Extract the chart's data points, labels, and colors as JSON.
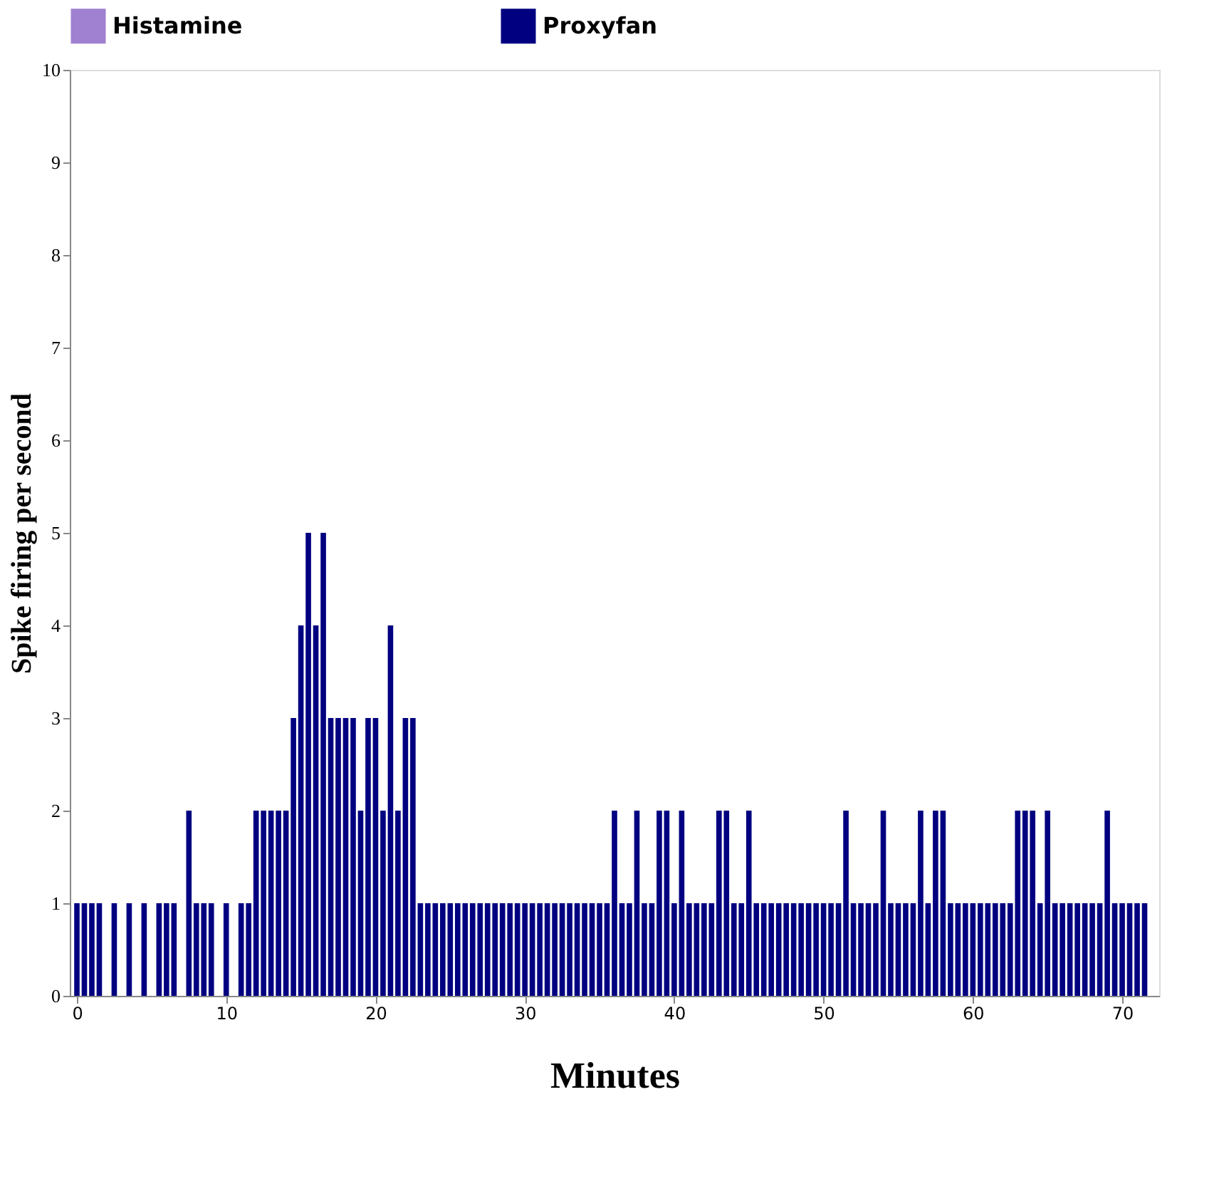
{
  "chart_data": {
    "type": "bar",
    "xlabel": "Minutes",
    "ylabel": "Spike firing per second",
    "legend": "top",
    "xlim": [
      0,
      72
    ],
    "xticks": [
      0,
      10,
      20,
      30,
      40,
      50,
      60,
      70
    ],
    "ylim": [
      0,
      10
    ],
    "yticks": [
      0,
      1,
      2,
      3,
      4,
      5,
      6,
      7,
      8,
      9,
      10
    ],
    "grid": false,
    "x": [
      0,
      0.5,
      1,
      1.5,
      2,
      2.5,
      3,
      3.5,
      4,
      4.5,
      5,
      5.5,
      6,
      6.5,
      7,
      7.5,
      8,
      8.5,
      9,
      9.5,
      10,
      10.5,
      11,
      11.5,
      12,
      12.5,
      13,
      13.5,
      14,
      14.5,
      15,
      15.5,
      16,
      16.5,
      17,
      17.5,
      18,
      18.5,
      19,
      19.5,
      20,
      20.5,
      21,
      21.5,
      22,
      22.5,
      23,
      23.5,
      24,
      24.5,
      25,
      25.5,
      26,
      26.5,
      27,
      27.5,
      28,
      28.5,
      29,
      29.5,
      30,
      30.5,
      31,
      31.5,
      32,
      32.5,
      33,
      33.5,
      34,
      34.5,
      35,
      35.5,
      36,
      36.5,
      37,
      37.5,
      38,
      38.5,
      39,
      39.5,
      40,
      40.5,
      41,
      41.5,
      42,
      42.5,
      43,
      43.5,
      44,
      44.5,
      45,
      45.5,
      46,
      46.5,
      47,
      47.5,
      48,
      48.5,
      49,
      49.5,
      50,
      50.5,
      51,
      51.5,
      52,
      52.5,
      53,
      53.5,
      54,
      54.5,
      55,
      55.5,
      56,
      56.5,
      57,
      57.5,
      58,
      58.5,
      59,
      59.5,
      60,
      60.5,
      61,
      61.5,
      62,
      62.5,
      63,
      63.5,
      64,
      64.5,
      65,
      65.5,
      66,
      66.5,
      67,
      67.5,
      68,
      68.5,
      69,
      69.5,
      70,
      70.5,
      71,
      71.5
    ],
    "series": [
      {
        "name": "Histamine",
        "color": "#a080d0",
        "values": [
          null,
          null,
          null,
          null,
          null,
          null,
          null,
          null,
          null,
          null,
          null,
          null,
          null,
          null,
          null,
          null,
          null,
          null,
          null,
          null,
          null,
          null,
          null,
          null,
          null,
          null,
          null,
          null,
          null,
          null,
          null,
          null,
          null,
          null,
          null,
          null,
          null,
          null,
          null,
          null,
          null,
          null,
          null,
          null,
          null,
          null,
          null,
          null,
          null,
          null,
          null,
          null,
          null,
          null,
          null,
          null,
          null,
          null,
          null,
          null,
          null,
          null,
          null,
          null,
          null,
          null,
          null,
          null,
          null,
          null,
          null,
          null,
          null,
          null,
          null,
          null,
          null,
          null,
          null,
          null,
          null,
          null,
          null,
          null,
          null,
          null,
          null,
          null,
          null,
          null,
          null,
          null,
          null,
          null,
          null,
          null,
          null,
          null,
          null,
          null,
          null,
          null,
          null,
          null,
          null,
          null,
          null,
          null,
          null,
          null,
          null,
          null,
          null,
          null,
          null,
          null,
          null,
          null,
          null,
          null,
          null,
          null,
          null,
          null,
          null,
          null,
          null,
          null,
          null,
          null,
          null,
          null,
          null,
          null,
          null,
          null,
          null,
          null,
          null,
          null,
          null,
          null,
          null,
          null
        ]
      },
      {
        "name": "Proxyfan",
        "color": "#000080",
        "values": [
          1,
          1,
          1,
          1,
          0,
          1,
          0,
          1,
          0,
          1,
          0,
          1,
          1,
          1,
          0,
          2,
          1,
          1,
          1,
          0,
          1,
          0,
          1,
          1,
          2,
          2,
          2,
          2,
          2,
          3,
          4,
          5,
          4,
          5,
          3,
          3,
          3,
          3,
          2,
          3,
          3,
          2,
          4,
          2,
          3,
          3,
          1,
          1,
          1,
          1,
          1,
          1,
          1,
          1,
          1,
          1,
          1,
          1,
          1,
          1,
          1,
          1,
          1,
          1,
          1,
          1,
          1,
          1,
          1,
          1,
          1,
          1,
          2,
          1,
          1,
          2,
          1,
          1,
          2,
          2,
          1,
          2,
          1,
          1,
          1,
          1,
          2,
          2,
          1,
          1,
          2,
          1,
          1,
          1,
          1,
          1,
          1,
          1,
          1,
          1,
          1,
          1,
          1,
          2,
          1,
          1,
          1,
          1,
          2,
          1,
          1,
          1,
          1,
          2,
          1,
          2,
          2,
          1,
          1,
          1,
          1,
          1,
          1,
          1,
          1,
          1,
          2,
          2,
          2,
          1,
          2,
          1,
          1,
          1,
          1,
          1,
          1,
          1,
          2,
          1,
          1,
          1,
          1,
          1
        ]
      }
    ]
  }
}
